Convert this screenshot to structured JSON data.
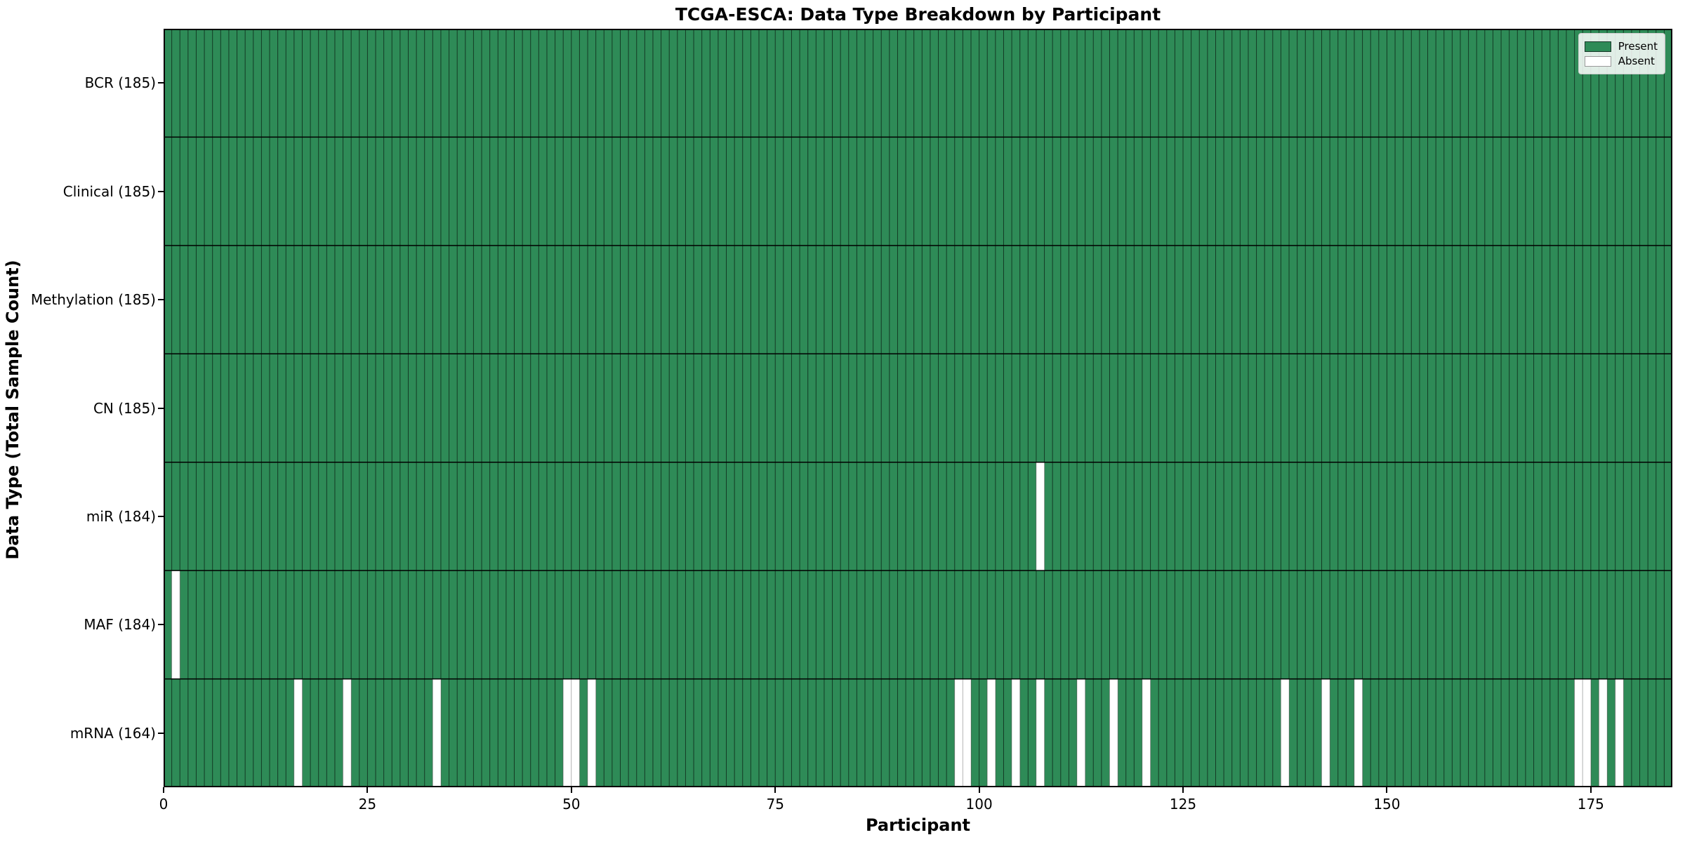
{
  "title": "TCGA-ESCA: Data Type Breakdown by Participant",
  "axes": {
    "xlabel": "Participant",
    "ylabel": "Data Type (Total Sample Count)",
    "xticks": [
      0,
      25,
      50,
      75,
      100,
      125,
      150,
      175
    ]
  },
  "legend": {
    "entries": [
      {
        "label": "Present",
        "color": "#2e8b57",
        "edge": "#173828"
      },
      {
        "label": "Absent",
        "color": "#ffffff",
        "edge": "#999999"
      }
    ]
  },
  "chart_data": {
    "type": "heatmap",
    "title": "TCGA-ESCA: Data Type Breakdown by Participant",
    "xlabel": "Participant",
    "ylabel": "Data Type (Total Sample Count)",
    "n_participants": 185,
    "xlim": [
      0,
      185
    ],
    "x_tick_values": [
      0,
      25,
      50,
      75,
      100,
      125,
      150,
      175
    ],
    "present_color": "#2e8b57",
    "absent_color": "#ffffff",
    "cell_edge_color": "rgba(15,45,28,0.85)",
    "row_separator_color": "#000000",
    "legend_position": "upper right",
    "grid": true,
    "rows": [
      {
        "label": "BCR (185)",
        "data_type": "BCR",
        "present_count": 185,
        "absent_participants": []
      },
      {
        "label": "Clinical (185)",
        "data_type": "Clinical",
        "present_count": 185,
        "absent_participants": []
      },
      {
        "label": "Methylation (185)",
        "data_type": "Methylation",
        "present_count": 185,
        "absent_participants": []
      },
      {
        "label": "CN (185)",
        "data_type": "CN",
        "present_count": 185,
        "absent_participants": []
      },
      {
        "label": "miR (184)",
        "data_type": "miR",
        "present_count": 184,
        "absent_participants": [
          107
        ]
      },
      {
        "label": "MAF (184)",
        "data_type": "MAF",
        "present_count": 184,
        "absent_participants": [
          1
        ]
      },
      {
        "label": "mRNA (164)",
        "data_type": "mRNA",
        "present_count": 164,
        "absent_participants": [
          16,
          22,
          33,
          49,
          50,
          52,
          97,
          98,
          101,
          104,
          107,
          112,
          116,
          120,
          137,
          142,
          146,
          173,
          174,
          176,
          178
        ]
      }
    ]
  }
}
